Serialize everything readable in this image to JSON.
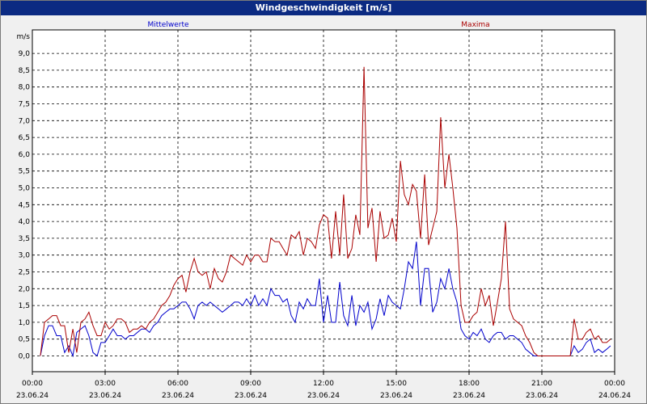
{
  "title": "Windgeschwindigkeit [m/s]",
  "chart_data": {
    "type": "line",
    "title": "Windgeschwindigkeit [m/s]",
    "ylabel": "m/s",
    "ylim": [
      -0.3,
      9.5
    ],
    "yticks": [
      "0,0",
      "0,5",
      "1,0",
      "1,5",
      "2,0",
      "2,5",
      "3,0",
      "3,5",
      "4,0",
      "4,5",
      "5,0",
      "5,5",
      "6,0",
      "6,5",
      "7,0",
      "7,5",
      "8,0",
      "8,5",
      "9,0"
    ],
    "xlim": [
      0,
      24
    ],
    "xticks": [
      {
        "time": "00:00",
        "date": "23.06.24"
      },
      {
        "time": "03:00",
        "date": "23.06.24"
      },
      {
        "time": "06:00",
        "date": "23.06.24"
      },
      {
        "time": "09:00",
        "date": "23.06.24"
      },
      {
        "time": "12:00",
        "date": "23.06.24"
      },
      {
        "time": "15:00",
        "date": "23.06.24"
      },
      {
        "time": "18:00",
        "date": "23.06.24"
      },
      {
        "time": "21:00",
        "date": "23.06.24"
      },
      {
        "time": "00:00",
        "date": "24.06.24"
      }
    ],
    "grid": true,
    "series": [
      {
        "name": "Mittelwerte",
        "color": "#0000cc",
        "points": [
          [
            0.33,
            0.0
          ],
          [
            0.5,
            0.6
          ],
          [
            0.67,
            0.9
          ],
          [
            0.83,
            0.9
          ],
          [
            1.0,
            0.6
          ],
          [
            1.17,
            0.6
          ],
          [
            1.33,
            0.1
          ],
          [
            1.5,
            0.3
          ],
          [
            1.67,
            0.0
          ],
          [
            1.83,
            0.7
          ],
          [
            2.0,
            0.8
          ],
          [
            2.17,
            0.9
          ],
          [
            2.33,
            0.6
          ],
          [
            2.5,
            0.1
          ],
          [
            2.67,
            0.0
          ],
          [
            2.83,
            0.4
          ],
          [
            3.0,
            0.4
          ],
          [
            3.17,
            0.6
          ],
          [
            3.33,
            0.8
          ],
          [
            3.5,
            0.6
          ],
          [
            3.67,
            0.6
          ],
          [
            3.83,
            0.5
          ],
          [
            4.0,
            0.6
          ],
          [
            4.17,
            0.6
          ],
          [
            4.33,
            0.7
          ],
          [
            4.5,
            0.8
          ],
          [
            4.67,
            0.8
          ],
          [
            4.83,
            0.7
          ],
          [
            5.0,
            0.9
          ],
          [
            5.17,
            1.0
          ],
          [
            5.33,
            1.2
          ],
          [
            5.5,
            1.3
          ],
          [
            5.67,
            1.4
          ],
          [
            5.83,
            1.4
          ],
          [
            6.0,
            1.5
          ],
          [
            6.17,
            1.6
          ],
          [
            6.33,
            1.6
          ],
          [
            6.5,
            1.4
          ],
          [
            6.67,
            1.1
          ],
          [
            6.83,
            1.5
          ],
          [
            7.0,
            1.6
          ],
          [
            7.17,
            1.5
          ],
          [
            7.33,
            1.6
          ],
          [
            7.5,
            1.5
          ],
          [
            7.67,
            1.4
          ],
          [
            7.83,
            1.3
          ],
          [
            8.0,
            1.4
          ],
          [
            8.17,
            1.5
          ],
          [
            8.33,
            1.6
          ],
          [
            8.5,
            1.6
          ],
          [
            8.67,
            1.5
          ],
          [
            8.83,
            1.7
          ],
          [
            9.0,
            1.5
          ],
          [
            9.17,
            1.8
          ],
          [
            9.33,
            1.5
          ],
          [
            9.5,
            1.7
          ],
          [
            9.67,
            1.5
          ],
          [
            9.83,
            2.0
          ],
          [
            10.0,
            1.8
          ],
          [
            10.17,
            1.8
          ],
          [
            10.33,
            1.6
          ],
          [
            10.5,
            1.7
          ],
          [
            10.67,
            1.2
          ],
          [
            10.83,
            1.0
          ],
          [
            11.0,
            1.6
          ],
          [
            11.17,
            1.4
          ],
          [
            11.33,
            1.7
          ],
          [
            11.5,
            1.5
          ],
          [
            11.67,
            1.5
          ],
          [
            11.83,
            2.3
          ],
          [
            12.0,
            1.0
          ],
          [
            12.17,
            1.8
          ],
          [
            12.33,
            1.0
          ],
          [
            12.5,
            1.0
          ],
          [
            12.67,
            2.2
          ],
          [
            12.83,
            1.2
          ],
          [
            13.0,
            0.9
          ],
          [
            13.17,
            1.8
          ],
          [
            13.33,
            0.9
          ],
          [
            13.5,
            1.5
          ],
          [
            13.67,
            1.3
          ],
          [
            13.83,
            1.6
          ],
          [
            14.0,
            0.8
          ],
          [
            14.17,
            1.1
          ],
          [
            14.33,
            1.7
          ],
          [
            14.5,
            1.2
          ],
          [
            14.67,
            1.8
          ],
          [
            14.83,
            1.6
          ],
          [
            15.0,
            1.5
          ],
          [
            15.17,
            1.4
          ],
          [
            15.33,
            2.0
          ],
          [
            15.5,
            2.8
          ],
          [
            15.67,
            2.6
          ],
          [
            15.83,
            3.4
          ],
          [
            16.0,
            1.5
          ],
          [
            16.17,
            2.6
          ],
          [
            16.33,
            2.6
          ],
          [
            16.5,
            1.3
          ],
          [
            16.67,
            1.6
          ],
          [
            16.83,
            2.3
          ],
          [
            17.0,
            2.0
          ],
          [
            17.17,
            2.6
          ],
          [
            17.33,
            2.0
          ],
          [
            17.5,
            1.6
          ],
          [
            17.67,
            0.8
          ],
          [
            17.83,
            0.6
          ],
          [
            18.0,
            0.5
          ],
          [
            18.17,
            0.7
          ],
          [
            18.33,
            0.6
          ],
          [
            18.5,
            0.8
          ],
          [
            18.67,
            0.5
          ],
          [
            18.83,
            0.4
          ],
          [
            19.0,
            0.6
          ],
          [
            19.17,
            0.7
          ],
          [
            19.33,
            0.7
          ],
          [
            19.5,
            0.5
          ],
          [
            19.67,
            0.6
          ],
          [
            19.83,
            0.6
          ],
          [
            20.0,
            0.5
          ],
          [
            20.17,
            0.4
          ],
          [
            20.33,
            0.2
          ],
          [
            20.5,
            0.1
          ],
          [
            20.67,
            0.0
          ],
          [
            20.83,
            0.0
          ],
          [
            21.0,
            0.0
          ],
          [
            21.17,
            0.0
          ],
          [
            21.33,
            0.0
          ],
          [
            21.5,
            0.0
          ],
          [
            21.67,
            0.0
          ],
          [
            21.83,
            0.0
          ],
          [
            22.0,
            0.0
          ],
          [
            22.17,
            0.0
          ],
          [
            22.33,
            0.3
          ],
          [
            22.5,
            0.1
          ],
          [
            22.67,
            0.2
          ],
          [
            22.83,
            0.4
          ],
          [
            23.0,
            0.5
          ],
          [
            23.17,
            0.1
          ],
          [
            23.33,
            0.2
          ],
          [
            23.5,
            0.1
          ],
          [
            23.67,
            0.2
          ],
          [
            23.83,
            0.3
          ]
        ]
      },
      {
        "name": "Maxima",
        "color": "#aa0000",
        "points": [
          [
            0.33,
            0.0
          ],
          [
            0.5,
            1.0
          ],
          [
            0.67,
            1.1
          ],
          [
            0.83,
            1.2
          ],
          [
            1.0,
            1.2
          ],
          [
            1.17,
            0.9
          ],
          [
            1.33,
            0.9
          ],
          [
            1.5,
            0.1
          ],
          [
            1.67,
            0.8
          ],
          [
            1.83,
            0.1
          ],
          [
            2.0,
            1.0
          ],
          [
            2.17,
            1.1
          ],
          [
            2.33,
            1.3
          ],
          [
            2.5,
            0.9
          ],
          [
            2.67,
            0.6
          ],
          [
            2.83,
            0.6
          ],
          [
            3.0,
            1.0
          ],
          [
            3.17,
            0.8
          ],
          [
            3.33,
            0.9
          ],
          [
            3.5,
            1.1
          ],
          [
            3.67,
            1.1
          ],
          [
            3.83,
            1.0
          ],
          [
            4.0,
            0.7
          ],
          [
            4.17,
            0.8
          ],
          [
            4.33,
            0.8
          ],
          [
            4.5,
            0.9
          ],
          [
            4.67,
            0.8
          ],
          [
            4.83,
            1.0
          ],
          [
            5.0,
            1.1
          ],
          [
            5.17,
            1.3
          ],
          [
            5.33,
            1.5
          ],
          [
            5.5,
            1.6
          ],
          [
            5.67,
            1.8
          ],
          [
            5.83,
            2.1
          ],
          [
            6.0,
            2.3
          ],
          [
            6.17,
            2.4
          ],
          [
            6.33,
            1.9
          ],
          [
            6.5,
            2.5
          ],
          [
            6.67,
            2.9
          ],
          [
            6.83,
            2.5
          ],
          [
            7.0,
            2.4
          ],
          [
            7.17,
            2.5
          ],
          [
            7.33,
            2.0
          ],
          [
            7.5,
            2.6
          ],
          [
            7.67,
            2.3
          ],
          [
            7.83,
            2.2
          ],
          [
            8.0,
            2.5
          ],
          [
            8.17,
            3.0
          ],
          [
            8.33,
            2.9
          ],
          [
            8.5,
            2.8
          ],
          [
            8.67,
            2.7
          ],
          [
            8.83,
            3.0
          ],
          [
            9.0,
            2.8
          ],
          [
            9.17,
            3.0
          ],
          [
            9.33,
            3.0
          ],
          [
            9.5,
            2.8
          ],
          [
            9.67,
            2.8
          ],
          [
            9.83,
            3.5
          ],
          [
            10.0,
            3.4
          ],
          [
            10.17,
            3.4
          ],
          [
            10.33,
            3.2
          ],
          [
            10.5,
            3.0
          ],
          [
            10.67,
            3.6
          ],
          [
            10.83,
            3.5
          ],
          [
            11.0,
            3.7
          ],
          [
            11.17,
            3.0
          ],
          [
            11.33,
            3.5
          ],
          [
            11.5,
            3.4
          ],
          [
            11.67,
            3.2
          ],
          [
            11.83,
            3.9
          ],
          [
            12.0,
            4.2
          ],
          [
            12.17,
            4.1
          ],
          [
            12.33,
            2.9
          ],
          [
            12.5,
            4.3
          ],
          [
            12.67,
            3.0
          ],
          [
            12.83,
            4.8
          ],
          [
            13.0,
            2.9
          ],
          [
            13.17,
            3.2
          ],
          [
            13.33,
            4.2
          ],
          [
            13.5,
            3.6
          ],
          [
            13.67,
            8.6
          ],
          [
            13.83,
            3.8
          ],
          [
            14.0,
            4.4
          ],
          [
            14.17,
            2.8
          ],
          [
            14.33,
            4.3
          ],
          [
            14.5,
            3.5
          ],
          [
            14.67,
            3.6
          ],
          [
            14.83,
            4.1
          ],
          [
            15.0,
            3.4
          ],
          [
            15.17,
            5.8
          ],
          [
            15.33,
            4.8
          ],
          [
            15.5,
            4.5
          ],
          [
            15.67,
            5.1
          ],
          [
            15.83,
            4.9
          ],
          [
            16.0,
            3.5
          ],
          [
            16.17,
            5.4
          ],
          [
            16.33,
            3.3
          ],
          [
            16.5,
            3.8
          ],
          [
            16.67,
            4.3
          ],
          [
            16.83,
            7.1
          ],
          [
            17.0,
            5.0
          ],
          [
            17.17,
            6.0
          ],
          [
            17.33,
            5.0
          ],
          [
            17.5,
            3.8
          ],
          [
            17.67,
            1.5
          ],
          [
            17.83,
            1.0
          ],
          [
            18.0,
            1.0
          ],
          [
            18.17,
            1.2
          ],
          [
            18.33,
            1.3
          ],
          [
            18.5,
            2.0
          ],
          [
            18.67,
            1.5
          ],
          [
            18.83,
            1.8
          ],
          [
            19.0,
            0.9
          ],
          [
            19.17,
            1.6
          ],
          [
            19.33,
            2.3
          ],
          [
            19.5,
            4.0
          ],
          [
            19.67,
            1.4
          ],
          [
            19.83,
            1.1
          ],
          [
            20.0,
            1.0
          ],
          [
            20.17,
            0.9
          ],
          [
            20.33,
            0.6
          ],
          [
            20.5,
            0.4
          ],
          [
            20.67,
            0.1
          ],
          [
            20.83,
            0.0
          ],
          [
            21.0,
            0.0
          ],
          [
            21.17,
            0.0
          ],
          [
            21.33,
            0.0
          ],
          [
            21.5,
            0.0
          ],
          [
            21.67,
            0.0
          ],
          [
            21.83,
            0.0
          ],
          [
            22.0,
            0.0
          ],
          [
            22.17,
            0.0
          ],
          [
            22.33,
            1.1
          ],
          [
            22.5,
            0.5
          ],
          [
            22.67,
            0.5
          ],
          [
            22.83,
            0.7
          ],
          [
            23.0,
            0.8
          ],
          [
            23.17,
            0.5
          ],
          [
            23.33,
            0.6
          ],
          [
            23.5,
            0.4
          ],
          [
            23.67,
            0.4
          ],
          [
            23.83,
            0.5
          ]
        ]
      }
    ]
  }
}
